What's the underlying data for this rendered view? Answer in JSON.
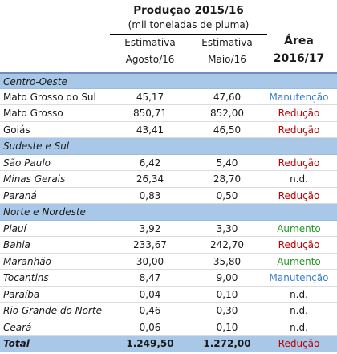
{
  "header": {
    "title": "Produção 2015/16",
    "subtitle": "(mil toneladas de pluma)",
    "col1_line1": "Estimativa",
    "col1_line2": "Agosto/16",
    "col2_line1": "Estimativa",
    "col2_line2": "Maio/16",
    "area_line1": "Área",
    "area_line2": "2016/17"
  },
  "colors": {
    "manutencao": "#3a7fcf",
    "reducao": "#c00000",
    "aumento": "#1e9a1e",
    "nd": "#1a1a1a",
    "section_bg": "#a9c8e8"
  },
  "rows": [
    {
      "kind": "section",
      "name": "Centro-Oeste"
    },
    {
      "kind": "row",
      "name": "Mato Grosso do Sul",
      "italic": false,
      "v1": "45,17",
      "v2": "47,60",
      "area": "Manutenção",
      "status": "manutencao"
    },
    {
      "kind": "row",
      "name": "Mato Grosso",
      "italic": false,
      "v1": "850,71",
      "v2": "852,00",
      "area": "Redução",
      "status": "reducao"
    },
    {
      "kind": "row",
      "name": "Goiás",
      "italic": false,
      "v1": "43,41",
      "v2": "46,50",
      "area": "Redução",
      "status": "reducao"
    },
    {
      "kind": "section",
      "name": "Sudeste e Sul"
    },
    {
      "kind": "row",
      "name": "São Paulo",
      "italic": true,
      "v1": "6,42",
      "v2": "5,40",
      "area": "Redução",
      "status": "reducao"
    },
    {
      "kind": "row",
      "name": "Minas Gerais",
      "italic": true,
      "v1": "26,34",
      "v2": "28,70",
      "area": "n.d.",
      "status": "nd"
    },
    {
      "kind": "row",
      "name": "Paraná",
      "italic": true,
      "v1": "0,83",
      "v2": "0,50",
      "area": "Redução",
      "status": "reducao"
    },
    {
      "kind": "section",
      "name": "Norte e Nordeste"
    },
    {
      "kind": "row",
      "name": "Piauí",
      "italic": true,
      "v1": "3,92",
      "v2": "3,30",
      "area": "Aumento",
      "status": "aumento"
    },
    {
      "kind": "row",
      "name": "Bahia",
      "italic": true,
      "v1": "233,67",
      "v2": "242,70",
      "area": "Redução",
      "status": "reducao"
    },
    {
      "kind": "row",
      "name": "Maranhão",
      "italic": true,
      "v1": "30,00",
      "v2": "35,80",
      "area": "Aumento",
      "status": "aumento"
    },
    {
      "kind": "row",
      "name": "Tocantins",
      "italic": true,
      "v1": "8,47",
      "v2": "9,00",
      "area": "Manutenção",
      "status": "manutencao"
    },
    {
      "kind": "row",
      "name": "Paraíba",
      "italic": true,
      "v1": "0,04",
      "v2": "0,10",
      "area": "n.d.",
      "status": "nd"
    },
    {
      "kind": "row",
      "name": "Rio Grande do Norte",
      "italic": true,
      "v1": "0,46",
      "v2": "0,30",
      "area": "n.d.",
      "status": "nd"
    },
    {
      "kind": "row",
      "name": "Ceará",
      "italic": true,
      "v1": "0,06",
      "v2": "0,10",
      "area": "n.d.",
      "status": "nd"
    },
    {
      "kind": "total",
      "name": "Total",
      "v1": "1.249,50",
      "v2": "1.272,00",
      "area": "Redução",
      "status": "reducao"
    }
  ]
}
